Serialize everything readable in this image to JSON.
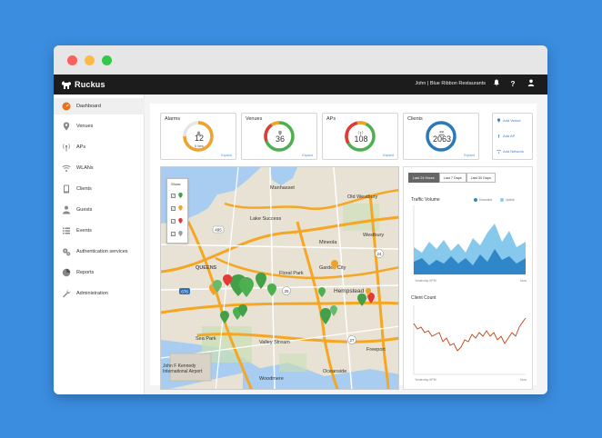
{
  "app": {
    "brand": "Ruckus",
    "user": "John  |  Blue Ribbon Restaurants",
    "icons": [
      "bell-icon",
      "help-icon",
      "user-icon"
    ]
  },
  "sidebar": {
    "items": [
      {
        "label": "Dashboard",
        "icon": "dashboard-icon",
        "active": true
      },
      {
        "label": "Venues",
        "icon": "location-pin-icon"
      },
      {
        "label": "APs",
        "icon": "access-point-icon"
      },
      {
        "label": "WLANs",
        "icon": "wifi-icon"
      },
      {
        "label": "Clients",
        "icon": "clients-icon"
      },
      {
        "label": "Guests",
        "icon": "guest-icon"
      },
      {
        "label": "Events",
        "icon": "events-list-icon"
      },
      {
        "label": "Authentication services",
        "icon": "gears-icon"
      },
      {
        "label": "Reports",
        "icon": "pie-chart-icon"
      },
      {
        "label": "Administration",
        "icon": "wrench-icon"
      }
    ]
  },
  "stats": [
    {
      "title": "Alarms",
      "value": "12",
      "sub": "8 New",
      "link": "Expand",
      "arc_color": "#f0a22a",
      "track_color": "#e6e6e6",
      "fraction": 0.75,
      "icon": "bell-icon"
    },
    {
      "title": "Venues",
      "value": "36",
      "link": "Expand",
      "arc_color": "#4caf50",
      "accent_color": "#e53935",
      "accent2_color": "#f0a22a",
      "fraction": 0.8,
      "icon": "location-pin-icon"
    },
    {
      "title": "APs",
      "value": "108",
      "link": "Expand",
      "arc_color": "#4caf50",
      "accent_color": "#e53935",
      "accent2_color": "#f0a22a",
      "fraction": 0.7,
      "icon": "access-point-icon"
    },
    {
      "title": "Clients",
      "value": "2063",
      "link": "Expand",
      "arc_color": "#2b79b8",
      "fraction": 1.0,
      "icon": "users-icon"
    }
  ],
  "add_links": {
    "venue": "Add Venue",
    "ap": "Add AP",
    "network": "Add Network"
  },
  "map": {
    "show_title": "Show:",
    "filters": [
      {
        "color": "#43a047"
      },
      {
        "color": "#f0a22a"
      },
      {
        "color": "#e53935"
      },
      {
        "color": "#9e9e9e"
      }
    ],
    "places": {
      "manhasset": "Manhasset",
      "old_westbury": "Old Westbury",
      "lake_success": "Lake Success",
      "mineola": "Mineola",
      "westbury": "Westbury",
      "queens": "QUEENS",
      "floral_park": "Floral Park",
      "garden_city": "Garden City",
      "hempstead": "Hempstead",
      "valley_stream": "Valley Stream",
      "freeport": "Freeport",
      "jfk": "John F Kennedy\nInternational Airport",
      "woodmere": "Woodmere",
      "oceanside": "Oceanside",
      "sea_park": "Sea Park"
    },
    "roads": [
      "495",
      "678",
      "25",
      "24",
      "27"
    ]
  },
  "charts": {
    "ranges": [
      "Last 24 Hours",
      "Last 7 Days",
      "Last 30 Days"
    ],
    "active_range": 0,
    "traffic": {
      "title": "Traffic Volume",
      "legend": [
        {
          "label": "Downlink",
          "color": "#2f86c8"
        },
        {
          "label": "Uplink",
          "color": "#86c9ec"
        }
      ],
      "x_start": "Yesterday 6PM",
      "x_end": "Now"
    },
    "clients": {
      "title": "Client Count",
      "color": "#b5471b",
      "x_start": "Yesterday 6PM",
      "x_end": "Now"
    }
  }
}
